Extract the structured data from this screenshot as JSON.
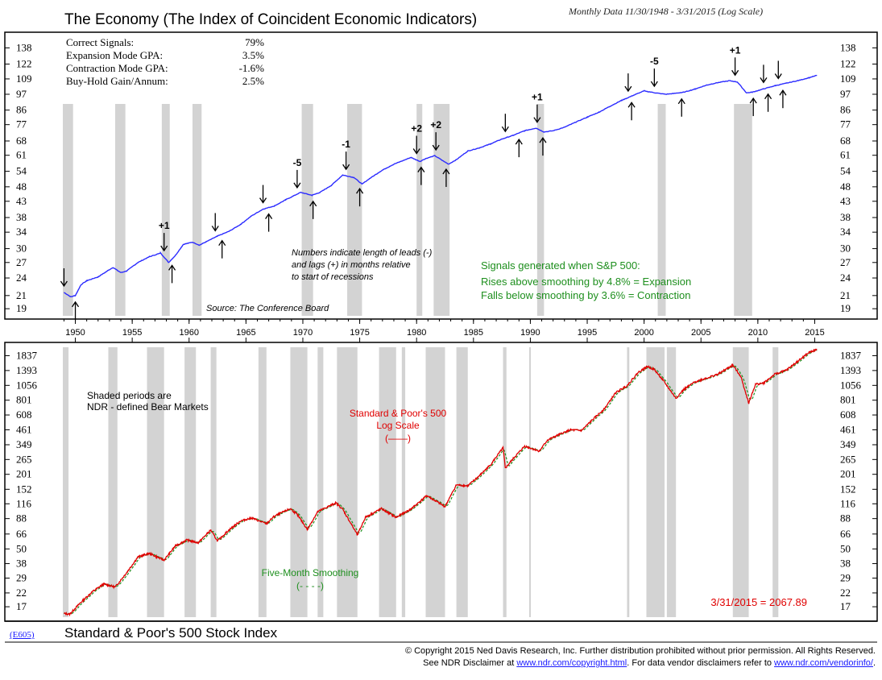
{
  "header": {
    "title": "The Economy (The Index of Coincident Economic Indicators)",
    "subtitle": "Monthly Data 11/30/1948 - 3/31/2015 (Log Scale)"
  },
  "stats": [
    {
      "label": "Correct Signals:",
      "value": "79%"
    },
    {
      "label": "Expansion Mode GPA:",
      "value": "3.5%"
    },
    {
      "label": "Contraction Mode GPA:",
      "value": "-1.6%"
    },
    {
      "label": "Buy-Hold Gain/Annum:",
      "value": "2.5%"
    }
  ],
  "notes": {
    "leads_lags": [
      "Numbers indicate length of leads (-)",
      "and lags (+) in months relative",
      "to start of recessions"
    ],
    "source": "Source: The Conference Board",
    "signals": [
      "Signals generated when S&P 500:",
      "Rises above smoothing by 4.8% = Expansion",
      "Falls below smoothing by 3.6% = Contraction"
    ],
    "shaded": [
      "Shaded periods are",
      "NDR - defined Bear Markets"
    ],
    "sp_label": [
      "Standard & Poor's 500",
      "Log Scale",
      "(——)"
    ],
    "smoothing_label": [
      "Five-Month Smoothing",
      "(- - - -)"
    ],
    "last_value": "3/31/2015 = 2067.89"
  },
  "footer": {
    "code": "(E605)",
    "title": "Standard & Poor's 500 Stock Index",
    "copyright": "© Copyright 2015 Ned Davis Research, Inc.  Further distribution prohibited without prior permission.  All Rights Reserved.",
    "disclaimer_pre": "See NDR Disclaimer at ",
    "disclaimer_link1": "www.ndr.com/copyright.html",
    "disclaimer_mid": ". For data vendor disclaimers refer to ",
    "disclaimer_link2": "www.ndr.com/vendorinfo/",
    "disclaimer_post": "."
  },
  "chart_data": [
    {
      "type": "line",
      "title": "The Economy (The Index of Coincident Economic Indicators)",
      "scale": "log",
      "xlim": [
        1948.9,
        2015.25
      ],
      "ylim": [
        18,
        148
      ],
      "x_ticks": [
        "1950",
        "1955",
        "1960",
        "1965",
        "1970",
        "1975",
        "1980",
        "1985",
        "1990",
        "1995",
        "2000",
        "2005",
        "2010",
        "2015"
      ],
      "y_ticks": [
        138,
        122,
        109,
        97,
        86,
        77,
        68,
        61,
        54,
        48,
        43,
        38,
        34,
        30,
        27,
        24,
        21,
        19
      ],
      "series": [
        {
          "color": "#2b2bff",
          "x": [
            1949.0,
            1949.6,
            1950.0,
            1950.5,
            1951.0,
            1952.0,
            1953.3,
            1954.0,
            1954.5,
            1955.5,
            1956.5,
            1957.5,
            1958.2,
            1958.8,
            1959.5,
            1960.3,
            1960.9,
            1961.5,
            1962.5,
            1963.5,
            1964.5,
            1965.5,
            1966.5,
            1967.5,
            1968.5,
            1969.8,
            1970.8,
            1971.5,
            1972.5,
            1973.5,
            1974.5,
            1975.2,
            1976.0,
            1977.0,
            1978.0,
            1979.5,
            1980.3,
            1980.8,
            1981.6,
            1982.8,
            1983.5,
            1984.5,
            1985.5,
            1986.5,
            1987.5,
            1988.5,
            1989.5,
            1990.5,
            1991.2,
            1992.0,
            1993.0,
            1994.0,
            1995.0,
            1996.0,
            1997.0,
            1998.0,
            1999.0,
            2000.0,
            2001.0,
            2001.9,
            2002.5,
            2003.5,
            2004.5,
            2005.5,
            2006.5,
            2007.5,
            2008.2,
            2009.0,
            2009.5,
            2010.5,
            2011.5,
            2012.5,
            2013.5,
            2014.5,
            2015.2
          ],
          "y": [
            21.5,
            20.8,
            21.0,
            22.8,
            23.5,
            24.2,
            26.0,
            25.0,
            25.3,
            27.0,
            28.2,
            29.0,
            27.0,
            28.5,
            31.0,
            31.5,
            30.8,
            31.6,
            33.0,
            34.2,
            36.0,
            38.5,
            40.5,
            41.5,
            43.5,
            46.0,
            45.0,
            46.0,
            48.5,
            52.5,
            51.5,
            49.0,
            51.5,
            54.5,
            57.0,
            60.0,
            58.2,
            59.5,
            60.8,
            57.0,
            59.0,
            63.0,
            64.5,
            66.5,
            69.0,
            71.0,
            73.5,
            75.0,
            72.8,
            73.5,
            75.5,
            78.5,
            81.5,
            84.5,
            88.5,
            92.5,
            96.0,
            99.5,
            98.0,
            97.0,
            97.5,
            98.5,
            101.0,
            104.0,
            106.0,
            107.5,
            106.5,
            98.0,
            98.5,
            101.0,
            103.5,
            105.5,
            107.5,
            110.0,
            112.0
          ]
        }
      ],
      "shaded_recessions": [
        [
          1948.9,
          1949.8
        ],
        [
          1953.5,
          1954.4
        ],
        [
          1957.6,
          1958.3
        ],
        [
          1960.3,
          1961.1
        ],
        [
          1969.9,
          1970.9
        ],
        [
          1973.9,
          1975.2
        ],
        [
          1980.0,
          1980.5
        ],
        [
          1981.5,
          1982.9
        ],
        [
          1990.6,
          1991.2
        ],
        [
          2001.2,
          2001.9
        ],
        [
          2007.9,
          2009.5
        ]
      ],
      "signals": [
        {
          "dir": "sell",
          "x": 1949.0
        },
        {
          "dir": "buy",
          "x": 1950.0
        },
        {
          "dir": "sell",
          "x": 1957.8,
          "label": "+1"
        },
        {
          "dir": "buy",
          "x": 1958.5
        },
        {
          "dir": "sell",
          "x": 1962.3
        },
        {
          "dir": "buy",
          "x": 1962.9
        },
        {
          "dir": "sell",
          "x": 1966.5
        },
        {
          "dir": "buy",
          "x": 1967.0
        },
        {
          "dir": "sell",
          "x": 1969.5,
          "label": "-5"
        },
        {
          "dir": "buy",
          "x": 1970.9
        },
        {
          "dir": "sell",
          "x": 1973.8,
          "label": "-1"
        },
        {
          "dir": "buy",
          "x": 1975.0
        },
        {
          "dir": "sell",
          "x": 1980.0,
          "label": "+2"
        },
        {
          "dir": "buy",
          "x": 1980.4
        },
        {
          "dir": "sell",
          "x": 1981.7,
          "label": "+2"
        },
        {
          "dir": "buy",
          "x": 1982.6
        },
        {
          "dir": "sell",
          "x": 1987.8
        },
        {
          "dir": "buy",
          "x": 1989.0
        },
        {
          "dir": "sell",
          "x": 1990.6,
          "label": "+1"
        },
        {
          "dir": "buy",
          "x": 1991.1
        },
        {
          "dir": "sell",
          "x": 1998.6
        },
        {
          "dir": "buy",
          "x": 1998.9
        },
        {
          "dir": "sell",
          "x": 2000.9,
          "label": "-5"
        },
        {
          "dir": "buy",
          "x": 2003.3
        },
        {
          "dir": "sell",
          "x": 2008.0,
          "label": "+1"
        },
        {
          "dir": "buy",
          "x": 2009.6
        },
        {
          "dir": "sell",
          "x": 2010.5
        },
        {
          "dir": "buy",
          "x": 2010.9
        },
        {
          "dir": "sell",
          "x": 2011.8
        },
        {
          "dir": "buy",
          "x": 2012.2
        }
      ]
    },
    {
      "type": "line",
      "title": "Standard & Poor's 500 Stock Index",
      "scale": "log",
      "xlim": [
        1948.9,
        2015.25
      ],
      "ylim": [
        14,
        2150
      ],
      "y_ticks": [
        1837,
        1393,
        1056,
        801,
        608,
        461,
        349,
        265,
        201,
        152,
        116,
        88,
        66,
        50,
        38,
        29,
        22,
        17
      ],
      "series": [
        {
          "name": "Standard & Poor's 500",
          "color": "#e00000",
          "x": [
            1949.0,
            1949.5,
            1950.5,
            1951.5,
            1952.5,
            1953.5,
            1954.5,
            1955.5,
            1956.5,
            1957.8,
            1958.8,
            1959.8,
            1960.8,
            1961.9,
            1962.5,
            1963.5,
            1964.5,
            1965.5,
            1966.8,
            1967.5,
            1968.9,
            1969.5,
            1970.4,
            1971.3,
            1972.9,
            1973.5,
            1974.8,
            1975.5,
            1976.9,
            1978.2,
            1979.5,
            1980.9,
            1982.5,
            1983.5,
            1984.5,
            1985.5,
            1986.5,
            1987.6,
            1987.8,
            1988.5,
            1989.5,
            1990.8,
            1991.5,
            1992.5,
            1993.5,
            1994.5,
            1995.5,
            1996.5,
            1997.5,
            1998.5,
            1999.5,
            2000.3,
            2000.9,
            2001.7,
            2002.8,
            2003.5,
            2004.5,
            2005.5,
            2006.5,
            2007.8,
            2008.5,
            2009.2,
            2009.8,
            2010.5,
            2011.5,
            2012.5,
            2013.5,
            2014.5,
            2015.2
          ],
          "y": [
            15.0,
            14.8,
            18.5,
            22.5,
            26.0,
            24.5,
            32.0,
            43.0,
            46.0,
            40.5,
            53.0,
            59.0,
            56.0,
            71.0,
            58.0,
            71.0,
            84.0,
            89.0,
            80.0,
            92.0,
            106.0,
            95.0,
            72.0,
            100.0,
            118.0,
            105.0,
            65.0,
            90.0,
            106.0,
            90.0,
            105.0,
            135.0,
            110.0,
            165.0,
            162.0,
            195.0,
            240.0,
            330.0,
            225.0,
            270.0,
            340.0,
            310.0,
            380.0,
            420.0,
            460.0,
            455.0,
            560.0,
            680.0,
            920.0,
            1050.0,
            1350.0,
            1500.0,
            1420.0,
            1150.0,
            830.0,
            980.0,
            1130.0,
            1210.0,
            1300.0,
            1540.0,
            1250.0,
            760.0,
            1080.0,
            1100.0,
            1300.0,
            1400.0,
            1650.0,
            1950.0,
            2067.89
          ]
        },
        {
          "name": "Five-Month Smoothing",
          "color": "#1e8f1e"
        }
      ],
      "shaded_bear_markets": [
        [
          1948.9,
          1949.4
        ],
        [
          1952.9,
          1953.7
        ],
        [
          1956.3,
          1957.8
        ],
        [
          1959.6,
          1960.6
        ],
        [
          1961.9,
          1962.4
        ],
        [
          1966.1,
          1966.8
        ],
        [
          1968.9,
          1970.4
        ],
        [
          1971.3,
          1971.8
        ],
        [
          1973.0,
          1974.8
        ],
        [
          1976.7,
          1978.2
        ],
        [
          1978.7,
          1979.0
        ],
        [
          1980.8,
          1982.5
        ],
        [
          1983.5,
          1984.5
        ],
        [
          1987.6,
          1987.9
        ],
        [
          1989.9,
          1990.0
        ],
        [
          1998.5,
          1998.7
        ],
        [
          2000.2,
          2001.8
        ],
        [
          2002.0,
          2002.8
        ],
        [
          2007.8,
          2009.2
        ],
        [
          2011.3,
          2011.8
        ]
      ]
    }
  ]
}
